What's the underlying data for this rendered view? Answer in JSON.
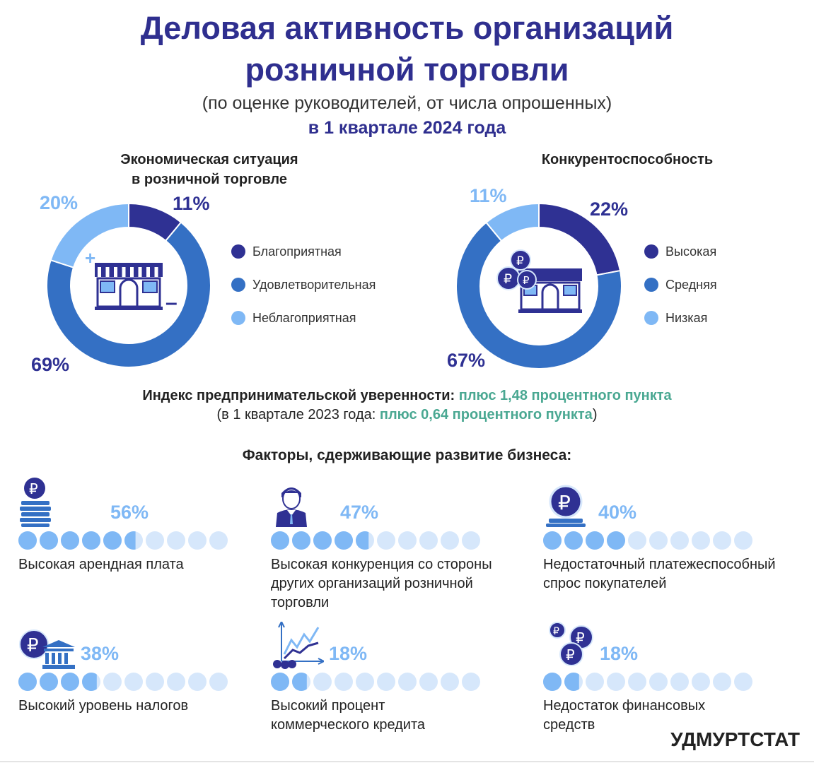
{
  "header": {
    "title_line1": "Деловая активность организаций",
    "title_line2": "розничной торговли",
    "subtitle": "(по оценке руководителей, от числа опрошенных)",
    "period": "в 1 квартале 2024 года"
  },
  "colors": {
    "dark": "#2f3193",
    "medium": "#3470c4",
    "light": "#7fb8f5",
    "pale": "#d6e7fb",
    "green": "#4aa892"
  },
  "chart_data": [
    {
      "type": "pie",
      "title": "Экономическая ситуация в розничной торговле",
      "title_line1": "Экономическая ситуация",
      "title_line2": "в розничной торговле",
      "categories": [
        "Благоприятная",
        "Удовлетворительная",
        "Неблагоприятная"
      ],
      "values": [
        11,
        69,
        20
      ],
      "labels": [
        "11%",
        "69%",
        "20%"
      ],
      "legend_placement": "right"
    },
    {
      "type": "pie",
      "title": "Конкурентоспособность",
      "categories": [
        "Высокая",
        "Средняя",
        "Низкая"
      ],
      "values": [
        22,
        67,
        11
      ],
      "labels": [
        "22%",
        "67%",
        "11%"
      ],
      "legend_placement": "right"
    },
    {
      "type": "bar",
      "title": "Факторы, сдерживающие развитие бизнеса:",
      "categories": [
        "Высокая арендная плата",
        "Высокая конкуренция со стороны других организаций розничной торговли",
        "Недостаточный платежеспособный спрос покупателей",
        "Высокий уровень налогов",
        "Высокий процент коммерческого кредита",
        "Недостаток финансовых средств"
      ],
      "values": [
        56,
        47,
        40,
        38,
        18,
        18
      ],
      "labels": [
        "56%",
        "47%",
        "40%",
        "38%",
        "18%",
        "18%"
      ]
    }
  ],
  "index": {
    "label": "Индекс предпринимательской уверенности: ",
    "value": "плюс 1,48 процентного пункта",
    "prev_open": "(в 1 квартале 2023 года: ",
    "prev_value": "плюс 0,64 процентного пункта",
    "prev_close": ")"
  },
  "factors_labels": [
    [
      "Высокая арендная плата"
    ],
    [
      "Высокая конкуренция со стороны",
      "других организаций розничной",
      "торговли"
    ],
    [
      "Недостаточный платежеспособный",
      "спрос покупателей"
    ],
    [
      "Высокий уровень налогов"
    ],
    [
      "Высокий процент",
      "коммерческого кредита"
    ],
    [
      "Недостаток финансовых",
      "средств"
    ]
  ],
  "icons": {
    "minus_sign": "–",
    "plus_sign": "+",
    "ruble": "₽"
  },
  "brand": "УДМУРТСТАТ"
}
